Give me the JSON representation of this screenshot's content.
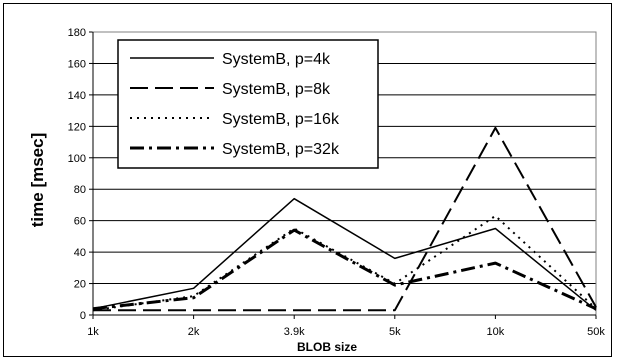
{
  "chart_data": {
    "type": "line",
    "xlabel": "BLOB size",
    "ylabel": "time [msec]",
    "categories": [
      "1k",
      "2k",
      "3.9k",
      "5k",
      "10k",
      "50k"
    ],
    "ylim": [
      0,
      180
    ],
    "yticks": [
      0,
      20,
      40,
      60,
      80,
      100,
      120,
      140,
      160,
      180
    ],
    "grid": true,
    "legend_position": "top-left",
    "series": [
      {
        "name": "SystemB, p=4k",
        "values": [
          4,
          17,
          74,
          36,
          55,
          3
        ]
      },
      {
        "name": "SystemB, p=8k",
        "values": [
          3,
          3,
          3,
          3,
          119,
          5
        ]
      },
      {
        "name": "SystemB, p=16k",
        "values": [
          3,
          12,
          55,
          20,
          63,
          4
        ]
      },
      {
        "name": "SystemB, p=32k",
        "values": [
          4,
          11,
          54,
          19,
          33,
          4
        ]
      }
    ]
  }
}
